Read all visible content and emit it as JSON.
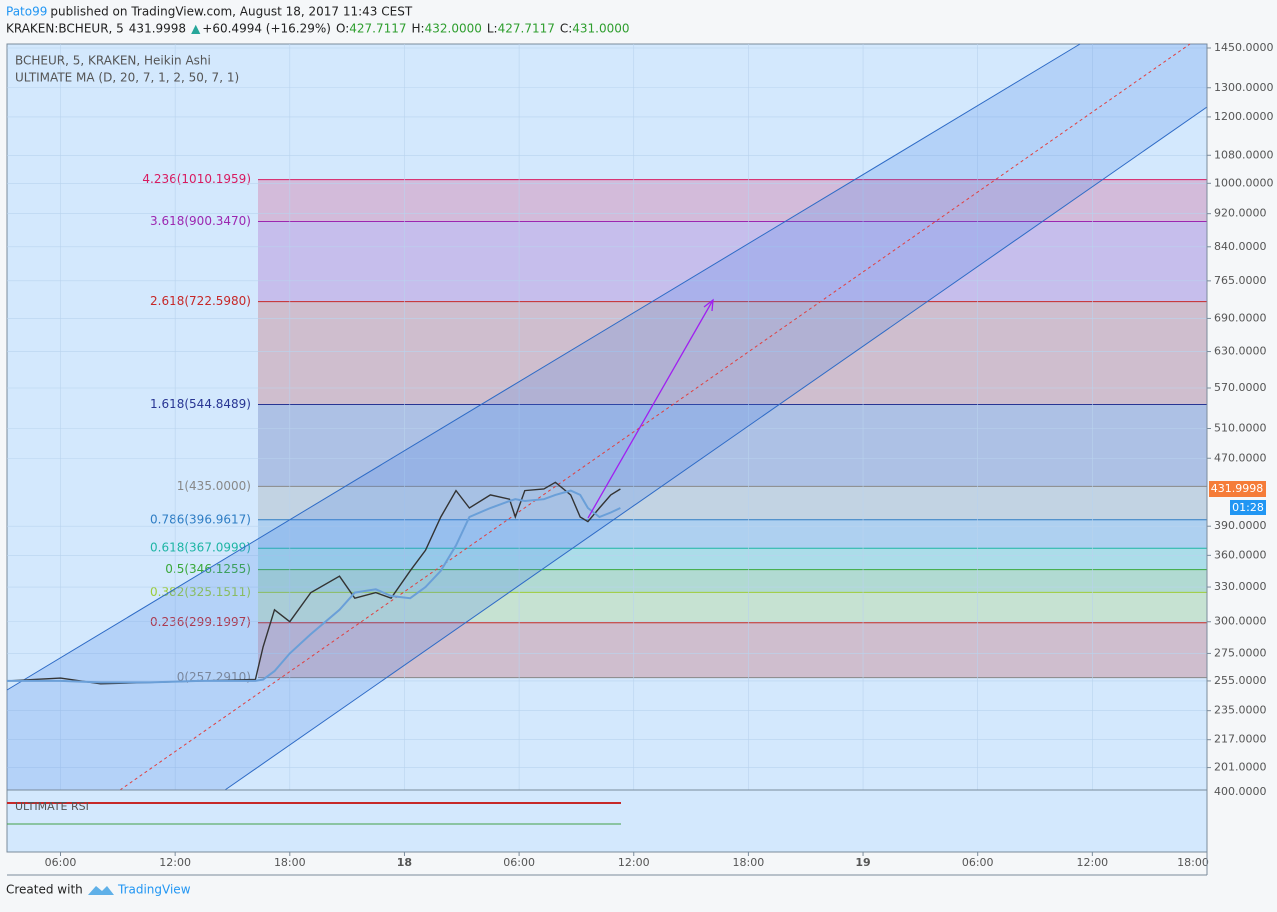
{
  "header": {
    "author": "Pato99",
    "published": "published on TradingView.com, August 18, 2017 11:43 CEST",
    "symbol": "KRAKEN:BCHEUR, 5",
    "last": "431.9998",
    "arrow": "▲",
    "change": "+60.4994 (+16.29%)",
    "ohlc": [
      {
        "key": "O:",
        "value": "427.7117"
      },
      {
        "key": "H:",
        "value": "432.0000"
      },
      {
        "key": "L:",
        "value": "427.7117"
      },
      {
        "key": "C:",
        "value": "431.0000"
      }
    ]
  },
  "chart_data": {
    "type": "line",
    "log_scale": true,
    "x": [
      3.2,
      6,
      8.1,
      10.7,
      13.3,
      16.2,
      16.6,
      17.2,
      18.0,
      19.1,
      20.6,
      21.4,
      22.5,
      23.3,
      24.3,
      25.1,
      25.9,
      26.7,
      27.4,
      28.5,
      29.5,
      29.8,
      30.3,
      31.3,
      31.9,
      32.7,
      33.2,
      33.6,
      34.2,
      34.8,
      35.3
    ],
    "series": [
      {
        "name": "BCHEUR, 5, KRAKEN, Heikin Ashi",
        "color": "#333333",
        "values": [
          255,
          257,
          253,
          254,
          255,
          256,
          280,
          310,
          300,
          325,
          340,
          320,
          325,
          320,
          345,
          365,
          400,
          430,
          410,
          425,
          420,
          400,
          430,
          432,
          440,
          425,
          400,
          395,
          410,
          425,
          432
        ]
      },
      {
        "name": "ULTIMATE MA (D, 20, 7, 1, 2, 50, 7, 1)",
        "color": "#6a9fd8",
        "values": [
          255,
          255,
          254,
          254,
          255,
          255,
          256,
          262,
          275,
          290,
          310,
          325,
          328,
          322,
          320,
          330,
          345,
          370,
          400,
          410,
          418,
          420,
          418,
          420,
          425,
          430,
          425,
          410,
          400,
          405,
          410
        ]
      }
    ],
    "xlim": [
      3.2,
      66
    ],
    "xticks": [
      {
        "value": 6,
        "label": "06:00"
      },
      {
        "value": 12,
        "label": "12:00"
      },
      {
        "value": 18,
        "label": "18:00"
      },
      {
        "value": 24,
        "label": "18"
      },
      {
        "value": 30,
        "label": "06:00"
      },
      {
        "value": 36,
        "label": "12:00"
      },
      {
        "value": 42,
        "label": "18:00"
      },
      {
        "value": 48,
        "label": "19"
      },
      {
        "value": 54,
        "label": "06:00"
      },
      {
        "value": 60,
        "label": "12:00"
      },
      {
        "value": 66,
        "label": "18:00"
      }
    ],
    "ylim": [
      189,
      1466
    ],
    "yticks": [
      {
        "value": 1450,
        "label": "1450.0000"
      },
      {
        "value": 1300,
        "label": "1300.0000"
      },
      {
        "value": 1200,
        "label": "1200.0000"
      },
      {
        "value": 1080,
        "label": "1080.0000"
      },
      {
        "value": 1000,
        "label": "1000.0000"
      },
      {
        "value": 920,
        "label": "920.0000"
      },
      {
        "value": 840,
        "label": "840.0000"
      },
      {
        "value": 765,
        "label": "765.0000"
      },
      {
        "value": 690,
        "label": "690.0000"
      },
      {
        "value": 630,
        "label": "630.0000"
      },
      {
        "value": 570,
        "label": "570.0000"
      },
      {
        "value": 510,
        "label": "510.0000"
      },
      {
        "value": 470,
        "label": "470.0000"
      },
      {
        "value": 390,
        "label": "390.0000"
      },
      {
        "value": 360,
        "label": "360.0000"
      },
      {
        "value": 330,
        "label": "330.0000"
      },
      {
        "value": 300,
        "label": "300.0000"
      },
      {
        "value": 275,
        "label": "275.0000"
      },
      {
        "value": 255,
        "label": "255.0000"
      },
      {
        "value": 235,
        "label": "235.0000"
      },
      {
        "value": 217,
        "label": "217.0000"
      },
      {
        "value": 201,
        "label": "201.0000"
      }
    ],
    "grid": true,
    "fib_levels": [
      {
        "label": "4.236(1010.1959)",
        "value": 1010.1959,
        "color": "#d81b60"
      },
      {
        "label": "3.618(900.3470)",
        "value": 900.347,
        "color": "#9c27b0"
      },
      {
        "label": "2.618(722.5980)",
        "value": 722.598,
        "color": "#c62828"
      },
      {
        "label": "1.618(544.8489)",
        "value": 544.8489,
        "color": "#283593"
      },
      {
        "label": "1(435.0000)",
        "value": 435,
        "color": "#888888"
      },
      {
        "label": "0.786(396.9617)",
        "value": 396.9617,
        "color": "#2e7dc4"
      },
      {
        "label": "0.618(367.0999)",
        "value": 367.0999,
        "color": "#1fb5a5"
      },
      {
        "label": "0.5(346.1255)",
        "value": 346.1255,
        "color": "#3aa83a"
      },
      {
        "label": "0.382(325.1511)",
        "value": 325.1511,
        "color": "#9ccc3a"
      },
      {
        "label": "0.236(299.1997)",
        "value": 299.1997,
        "color": "#c62828"
      },
      {
        "label": "0(257.2910)",
        "value": 257.291,
        "color": "#888888"
      }
    ],
    "price_label": "431.9998",
    "countdown": "01:28",
    "indicator": {
      "title": "ULTIMATE RSI",
      "axis_label": "400.0000"
    }
  },
  "footer": {
    "created": "Created with",
    "brand": "TradingView"
  }
}
